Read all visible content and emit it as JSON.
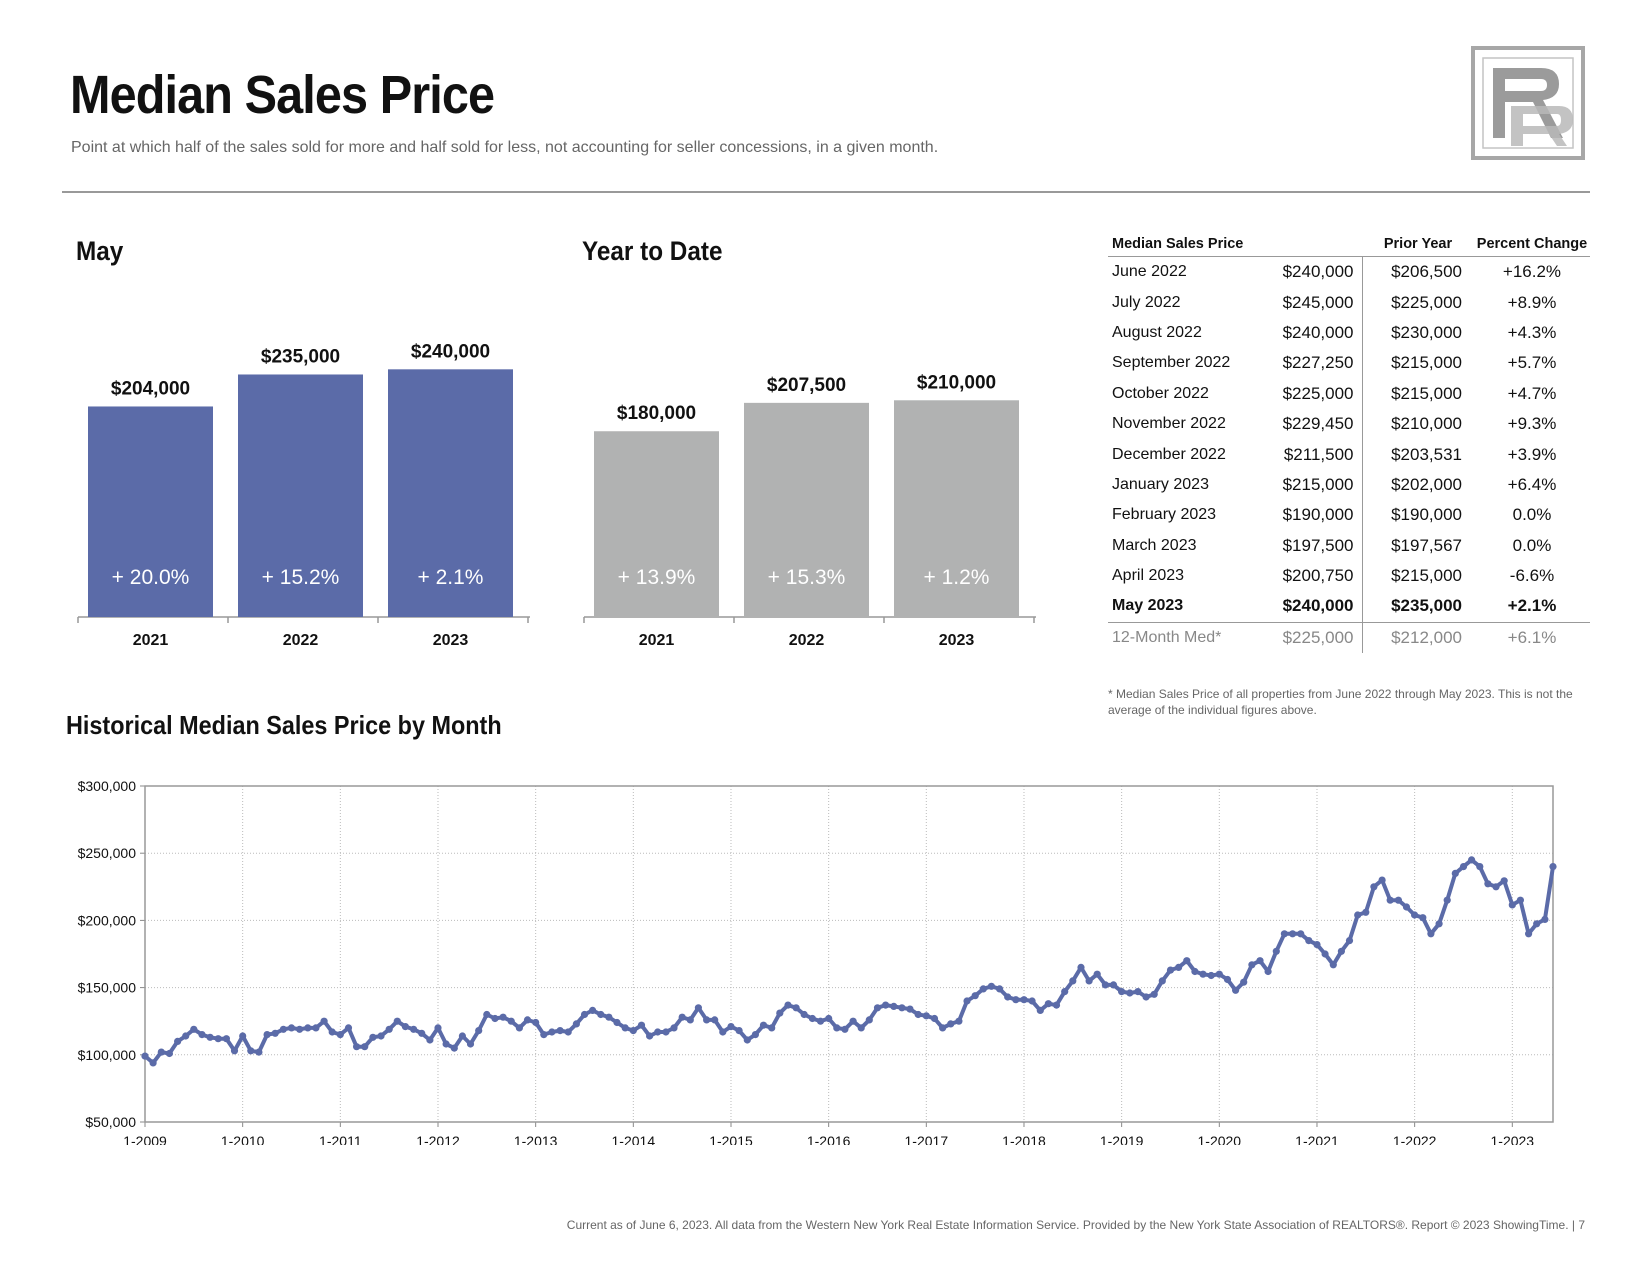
{
  "header": {
    "title": "Median Sales Price",
    "subtitle": "Point at which half of the sales sold for more and half sold for less, not accounting for seller concessions, in a given month."
  },
  "logo": {
    "icon": "rr-logo-icon"
  },
  "colors": {
    "month_bar": "#5b6ba8",
    "ytd_bar": "#b1b2b2",
    "line": "#5b6ba8"
  },
  "month_chart": {
    "title": "May"
  },
  "ytd_chart": {
    "title": "Year to Date"
  },
  "historical": {
    "title": "Historical Median Sales Price by Month"
  },
  "table": {
    "headers": [
      "Median Sales Price",
      "Prior Year",
      "Percent Change"
    ],
    "rows": [
      {
        "month": "June 2022",
        "current": "$240,000",
        "prior": "$206,500",
        "change": "+16.2%"
      },
      {
        "month": "July 2022",
        "current": "$245,000",
        "prior": "$225,000",
        "change": "+8.9%"
      },
      {
        "month": "August 2022",
        "current": "$240,000",
        "prior": "$230,000",
        "change": "+4.3%"
      },
      {
        "month": "September 2022",
        "current": "$227,250",
        "prior": "$215,000",
        "change": "+5.7%"
      },
      {
        "month": "October 2022",
        "current": "$225,000",
        "prior": "$215,000",
        "change": "+4.7%"
      },
      {
        "month": "November 2022",
        "current": "$229,450",
        "prior": "$210,000",
        "change": "+9.3%"
      },
      {
        "month": "December 2022",
        "current": "$211,500",
        "prior": "$203,531",
        "change": "+3.9%"
      },
      {
        "month": "January 2023",
        "current": "$215,000",
        "prior": "$202,000",
        "change": "+6.4%"
      },
      {
        "month": "February 2023",
        "current": "$190,000",
        "prior": "$190,000",
        "change": "0.0%"
      },
      {
        "month": "March 2023",
        "current": "$197,500",
        "prior": "$197,567",
        "change": "0.0%"
      },
      {
        "month": "April 2023",
        "current": "$200,750",
        "prior": "$215,000",
        "change": "-6.6%"
      },
      {
        "month": "May 2023",
        "current": "$240,000",
        "prior": "$235,000",
        "change": "+2.1%"
      }
    ],
    "summary": {
      "month": "12-Month Med*",
      "current": "$225,000",
      "prior": "$212,000",
      "change": "+6.1%"
    }
  },
  "footnote": "* Median Sales Price of all properties from June 2022 through May 2023. This is not the average of the individual figures above.",
  "footer": "Current as of June 6, 2023. All data from the Western New York Real Estate Information Service. Provided by the New York State Association of REALTORS®. Report © 2023 ShowingTime.  |  7",
  "chart_data": [
    {
      "type": "bar",
      "title": "May",
      "categories": [
        "2021",
        "2022",
        "2023"
      ],
      "values": [
        204000,
        235000,
        240000
      ],
      "value_labels": [
        "$204,000",
        "$235,000",
        "$240,000"
      ],
      "change_labels": [
        "+ 20.0%",
        "+ 15.2%",
        "+ 2.1%"
      ]
    },
    {
      "type": "bar",
      "title": "Year to Date",
      "categories": [
        "2021",
        "2022",
        "2023"
      ],
      "values": [
        180000,
        207500,
        210000
      ],
      "value_labels": [
        "$180,000",
        "$207,500",
        "$210,000"
      ],
      "change_labels": [
        "+ 13.9%",
        "+ 15.3%",
        "+ 1.2%"
      ]
    },
    {
      "type": "line",
      "title": "Historical Median Sales Price by Month",
      "x_start": "1-2009",
      "x_end": "5-2023",
      "ylim": [
        50000,
        300000
      ],
      "yticks": [
        50000,
        100000,
        150000,
        200000,
        250000,
        300000
      ],
      "ytick_labels": [
        "$50,000",
        "$100,000",
        "$150,000",
        "$200,000",
        "$250,000",
        "$300,000"
      ],
      "xtick_labels": [
        "1-2009",
        "1-2010",
        "1-2011",
        "1-2012",
        "1-2013",
        "1-2014",
        "1-2015",
        "1-2016",
        "1-2017",
        "1-2018",
        "1-2019",
        "1-2020",
        "1-2021",
        "1-2022",
        "1-2023"
      ],
      "grid": true,
      "values": [
        99000,
        94000,
        102000,
        101000,
        110000,
        114000,
        119000,
        115000,
        113000,
        112000,
        112000,
        103000,
        114000,
        103000,
        102000,
        115000,
        116000,
        119000,
        120000,
        119000,
        120000,
        120000,
        125000,
        117000,
        115000,
        120000,
        106000,
        106000,
        113000,
        114000,
        119000,
        125000,
        121000,
        119000,
        116000,
        111000,
        120000,
        108000,
        105000,
        114000,
        108000,
        118000,
        130000,
        127000,
        128000,
        125000,
        120000,
        126000,
        124000,
        115000,
        117000,
        118000,
        117000,
        123000,
        130000,
        133000,
        130000,
        128000,
        124000,
        120000,
        118000,
        122000,
        114000,
        117000,
        117000,
        120000,
        128000,
        126000,
        135000,
        126000,
        126000,
        117000,
        121000,
        118000,
        111000,
        115000,
        122000,
        120000,
        131000,
        137000,
        135000,
        130000,
        127000,
        125000,
        127000,
        120000,
        119000,
        125000,
        120000,
        126000,
        135000,
        137000,
        136000,
        135000,
        134000,
        130000,
        129000,
        127000,
        120000,
        123000,
        125000,
        140000,
        144000,
        149000,
        151000,
        149000,
        143000,
        141000,
        141000,
        140000,
        133000,
        138000,
        137000,
        147000,
        155000,
        165000,
        155000,
        160000,
        152000,
        152000,
        147000,
        146000,
        147000,
        143000,
        145000,
        155000,
        163000,
        165000,
        170000,
        162000,
        160000,
        159000,
        160000,
        156000,
        148000,
        154000,
        167000,
        170000,
        162000,
        177000,
        190000,
        190000,
        190000,
        185000,
        182000,
        175000,
        167000,
        177000,
        185000,
        204000,
        206000,
        225000,
        230000,
        215000,
        215000,
        210000,
        204000,
        202000,
        190000,
        197500,
        215000,
        235000,
        240000,
        245000,
        240000,
        227250,
        225000,
        229450,
        211500,
        215000,
        190000,
        197500,
        200750,
        240000
      ]
    }
  ]
}
